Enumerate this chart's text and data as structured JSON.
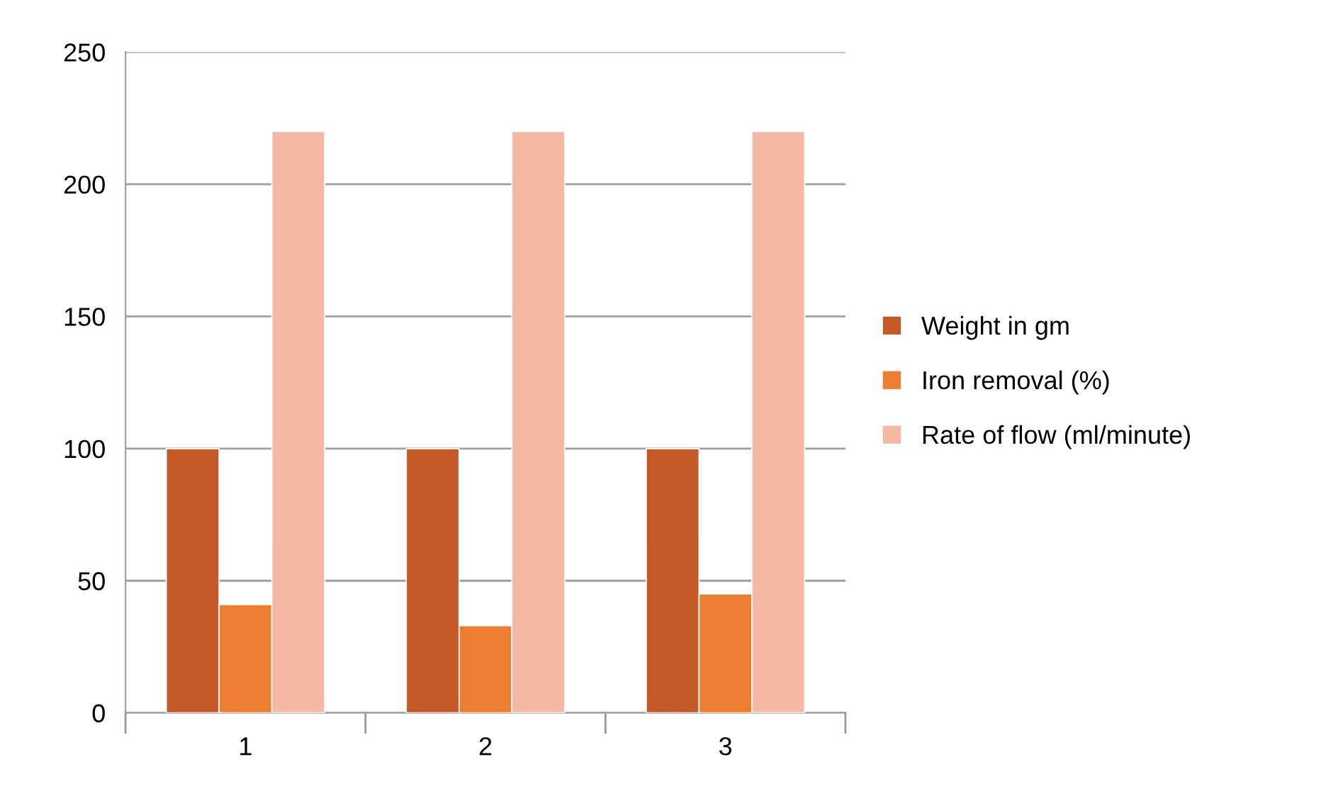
{
  "chart_data": {
    "type": "bar",
    "categories": [
      "1",
      "2",
      "3"
    ],
    "series": [
      {
        "name": "Weight in gm",
        "color": "#c55a28",
        "values": [
          100,
          100,
          100
        ]
      },
      {
        "name": "Iron removal (%)",
        "color": "#ed7d31",
        "values": [
          41,
          33,
          45
        ]
      },
      {
        "name": "Rate of flow (ml/minute)",
        "color": "#f4b8a4",
        "values": [
          220,
          220,
          220
        ]
      }
    ],
    "ylim": [
      0,
      250
    ],
    "yticks": [
      0,
      50,
      100,
      150,
      200,
      250
    ],
    "grid": "y",
    "legend": "right"
  }
}
